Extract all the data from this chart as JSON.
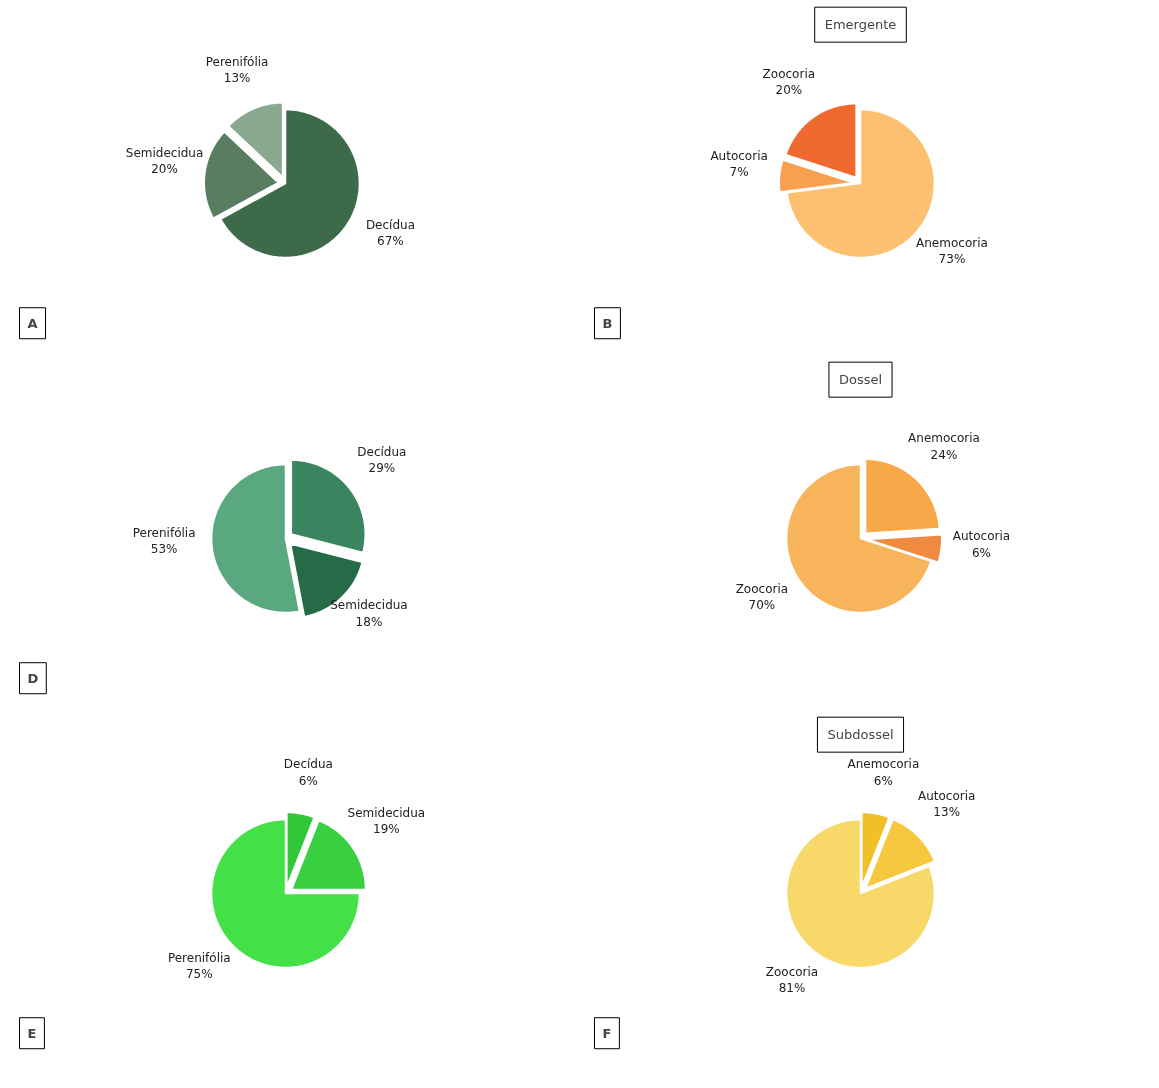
{
  "chart_data": [
    {
      "type": "pie",
      "annotations": [
        "A"
      ],
      "categories": [
        "Decídua",
        "Semidecidua",
        "Perenifólia"
      ],
      "values": [
        67,
        20,
        13
      ],
      "value_labels": [
        "67%",
        "20%",
        "13%"
      ],
      "colors": [
        "#3d6b4a",
        "#5a7d62",
        "#8aa890"
      ]
    },
    {
      "type": "pie",
      "title": "Emergente",
      "annotations": [
        "B"
      ],
      "categories": [
        "Anemocoria",
        "Autocoria",
        "Zoocoria"
      ],
      "values": [
        73,
        7,
        20
      ],
      "value_labels": [
        "73%",
        "7%",
        "20%"
      ],
      "colors": [
        "#fcc070",
        "#f8a050",
        "#f06a30"
      ]
    },
    {
      "type": "pie",
      "annotations": [
        "D"
      ],
      "categories": [
        "Decídua",
        "Semidecidua",
        "Perenifólia"
      ],
      "values": [
        29,
        18,
        53
      ],
      "value_labels": [
        "29%",
        "18%",
        "53%"
      ],
      "colors": [
        "#3a8560",
        "#256b48",
        "#5aa880"
      ]
    },
    {
      "type": "pie",
      "title": "Dossel",
      "categories": [
        "Anemocoria",
        "Autocoria",
        "Zoocoria"
      ],
      "values": [
        24,
        6,
        70
      ],
      "value_labels": [
        "24%",
        "6%",
        "70%"
      ],
      "colors": [
        "#f7a848",
        "#f08a40",
        "#f7b45a"
      ]
    },
    {
      "type": "pie",
      "annotations": [
        "E"
      ],
      "categories": [
        "Decídua",
        "Semidecidua",
        "Perenifólia"
      ],
      "values": [
        6,
        19,
        75
      ],
      "value_labels": [
        "6%",
        "19%",
        "75%"
      ],
      "colors": [
        "#30c838",
        "#38d040",
        "#44e048"
      ]
    },
    {
      "type": "pie",
      "title": "Subdossel",
      "annotations": [
        "F"
      ],
      "categories": [
        "Anemocoria",
        "Autocoria",
        "Zoocoria"
      ],
      "values": [
        6,
        13,
        81
      ],
      "value_labels": [
        "6%",
        "13%",
        "81%"
      ],
      "colors": [
        "#f0c028",
        "#f5c840",
        "#f8d868"
      ]
    }
  ]
}
